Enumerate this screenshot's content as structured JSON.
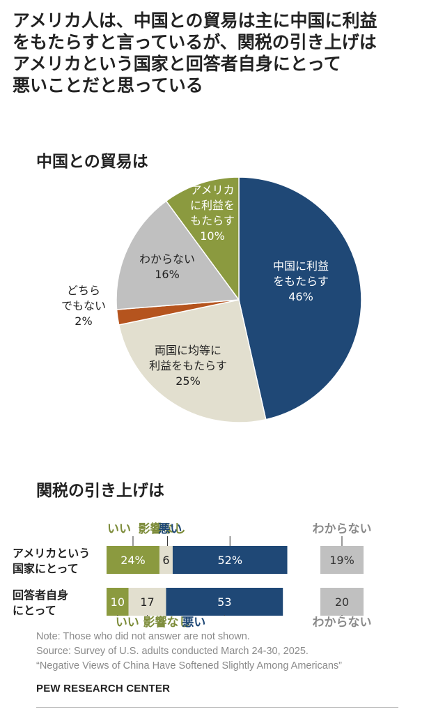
{
  "title": "アメリカ人は、中国との貿易は主に中国に利益\nをもたらすと言っているが、関税の引き上げは\nアメリカという国家と回答者自身にとって\n悪いことだと思っている",
  "colors": {
    "navy": "#1f4876",
    "olive": "#8b9a3f",
    "gray": "#c0c0c0",
    "beige": "#e2dfcf",
    "orange": "#b5541e",
    "olive_text": "#7d8c3a",
    "navy_text": "#1f4876",
    "gray_text": "#8a8a8a"
  },
  "chart_data": [
    {
      "type": "pie",
      "title": "中国との貿易は",
      "slices": [
        {
          "label": "中国に利益\nをもたらす",
          "value": 46
        },
        {
          "label": "両国に均等に\n利益をもたらす",
          "value": 25
        },
        {
          "label": "どちら\nでもない",
          "value": 2
        },
        {
          "label": "わからない",
          "value": 16
        },
        {
          "label": "アメリカ\nに利益を\nもたらす",
          "value": 10
        }
      ]
    },
    {
      "type": "bar",
      "title": "関税の引き上げは",
      "categories": [
        "アメリカという\n国家にとって",
        "回答者自身\nにとって"
      ],
      "series": [
        {
          "name": "いい",
          "values": [
            24,
            10
          ],
          "labels": [
            "24%",
            "10"
          ]
        },
        {
          "name": "影響なし",
          "values": [
            6,
            17
          ],
          "labels": [
            "6",
            "17"
          ]
        },
        {
          "name": "悪い",
          "values": [
            52,
            53
          ],
          "labels": [
            "52%",
            "53"
          ]
        },
        {
          "name": "わからない",
          "values": [
            19,
            20
          ],
          "labels": [
            "19%",
            "20"
          ]
        }
      ]
    }
  ],
  "footer": {
    "note": "Note: Those who did not answer are not shown.",
    "source": "Source: Survey of U.S. adults conducted March 24-30, 2025.",
    "report": "“Negative Views of China Have Softened Slightly Among Americans”",
    "brand": "PEW RESEARCH CENTER"
  }
}
